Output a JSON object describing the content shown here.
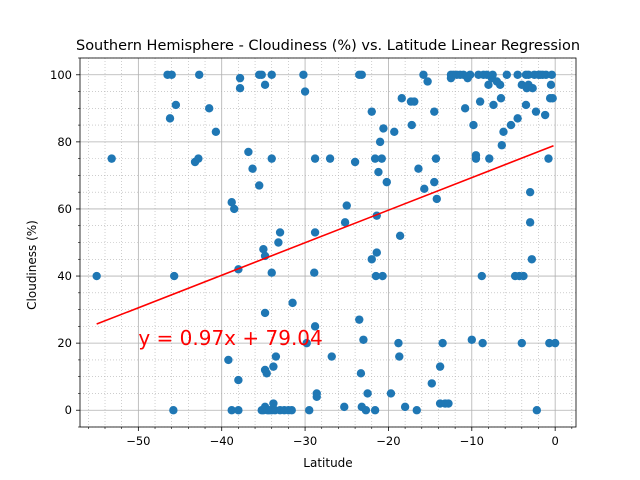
{
  "chart_data": {
    "type": "scatter",
    "title": "Southern Hemisphere - Cloudiness (%) vs. Latitude Linear Regression",
    "xlabel": "Latitude",
    "ylabel": "Cloudiness (%)",
    "xlim": [
      -57,
      2.5
    ],
    "ylim": [
      -5,
      105
    ],
    "xticks": [
      -50,
      -40,
      -30,
      -20,
      -10,
      0
    ],
    "yticks": [
      0,
      20,
      40,
      60,
      80,
      100
    ],
    "grid": true,
    "minor_grid": true,
    "marker_color": "#1f77b4",
    "regression": {
      "slope": 0.97,
      "intercept": 79.04,
      "x_range": [
        -55,
        -0.2
      ],
      "color": "#ff0000",
      "equation": "y = 0.97x + 79.04",
      "equation_position": [
        -50,
        20
      ]
    },
    "points": [
      [
        -55,
        40
      ],
      [
        -53.2,
        75
      ],
      [
        -46.5,
        100
      ],
      [
        -46,
        100
      ],
      [
        -46.2,
        87
      ],
      [
        -45.5,
        91
      ],
      [
        -45.7,
        40
      ],
      [
        -45.8,
        0
      ],
      [
        -43.2,
        74
      ],
      [
        -42.8,
        75
      ],
      [
        -42.7,
        100
      ],
      [
        -41.5,
        90
      ],
      [
        -40.7,
        83
      ],
      [
        -39.2,
        15
      ],
      [
        -38.8,
        62
      ],
      [
        -38.5,
        60
      ],
      [
        -38.8,
        0
      ],
      [
        -38,
        0
      ],
      [
        -38,
        42
      ],
      [
        -38,
        9
      ],
      [
        -37.8,
        99
      ],
      [
        -37.8,
        96
      ],
      [
        -36.8,
        77
      ],
      [
        -36.3,
        72
      ],
      [
        -35.5,
        67
      ],
      [
        -35.5,
        100
      ],
      [
        -35.2,
        100
      ],
      [
        -35,
        48
      ],
      [
        -34.8,
        46
      ],
      [
        -34.8,
        29
      ],
      [
        -34.8,
        12
      ],
      [
        -34.6,
        11
      ],
      [
        -34.8,
        97
      ],
      [
        -34,
        100
      ],
      [
        -34,
        75
      ],
      [
        -34,
        41
      ],
      [
        -35.2,
        0
      ],
      [
        -35,
        0
      ],
      [
        -34.8,
        1
      ],
      [
        -34.5,
        0
      ],
      [
        -34.3,
        0
      ],
      [
        -34,
        0
      ],
      [
        -33.8,
        2
      ],
      [
        -33.6,
        0
      ],
      [
        -33.8,
        13
      ],
      [
        -33.5,
        16
      ],
      [
        -33.2,
        50
      ],
      [
        -33,
        53
      ],
      [
        -33,
        0
      ],
      [
        -32.5,
        0
      ],
      [
        -32,
        0
      ],
      [
        -31.6,
        0
      ],
      [
        -31.5,
        32
      ],
      [
        -30.2,
        100
      ],
      [
        -30,
        95
      ],
      [
        -29.8,
        20
      ],
      [
        -29.5,
        0
      ],
      [
        -28.8,
        75
      ],
      [
        -28.8,
        53
      ],
      [
        -28.9,
        41
      ],
      [
        -28.8,
        25
      ],
      [
        -28.6,
        5
      ],
      [
        -28.6,
        4
      ],
      [
        -27,
        75
      ],
      [
        -26.8,
        16
      ],
      [
        -25.3,
        1
      ],
      [
        -25.2,
        56
      ],
      [
        -25,
        61
      ],
      [
        -24,
        74
      ],
      [
        -23.5,
        27
      ],
      [
        -23.5,
        100
      ],
      [
        -23.2,
        100
      ],
      [
        -23.3,
        11
      ],
      [
        -23,
        21
      ],
      [
        -23.2,
        1
      ],
      [
        -22.7,
        0
      ],
      [
        -22.5,
        5
      ],
      [
        -22,
        89
      ],
      [
        -22,
        45
      ],
      [
        -21.6,
        0
      ],
      [
        -21.6,
        75
      ],
      [
        -21.5,
        40
      ],
      [
        -21.4,
        47
      ],
      [
        -21.4,
        58
      ],
      [
        -21.2,
        71
      ],
      [
        -21,
        80
      ],
      [
        -20.8,
        75
      ],
      [
        -20.7,
        40
      ],
      [
        -20.6,
        84
      ],
      [
        -20.2,
        68
      ],
      [
        -19.7,
        5
      ],
      [
        -19.3,
        83
      ],
      [
        -18.8,
        20
      ],
      [
        -18.7,
        16
      ],
      [
        -18.6,
        52
      ],
      [
        -18.4,
        93
      ],
      [
        -18,
        1
      ],
      [
        -17.3,
        92
      ],
      [
        -17.2,
        85
      ],
      [
        -16.9,
        92
      ],
      [
        -16.6,
        0
      ],
      [
        -16.4,
        72
      ],
      [
        -15.8,
        100
      ],
      [
        -15.7,
        66
      ],
      [
        -15.3,
        98
      ],
      [
        -14.8,
        8
      ],
      [
        -14.5,
        68
      ],
      [
        -14.5,
        89
      ],
      [
        -14.3,
        75
      ],
      [
        -14.2,
        63
      ],
      [
        -13.8,
        13
      ],
      [
        -13.8,
        2
      ],
      [
        -13.5,
        20
      ],
      [
        -13.2,
        2
      ],
      [
        -12.8,
        2
      ],
      [
        -12.5,
        100
      ],
      [
        -12.2,
        100
      ],
      [
        -12.5,
        99
      ],
      [
        -11.8,
        100
      ],
      [
        -11.4,
        100
      ],
      [
        -11,
        100
      ],
      [
        -10.8,
        90
      ],
      [
        -10.5,
        99
      ],
      [
        -10.2,
        100
      ],
      [
        -10,
        21
      ],
      [
        -9.8,
        85
      ],
      [
        -9.5,
        76
      ],
      [
        -9.5,
        75
      ],
      [
        -9.2,
        100
      ],
      [
        -9,
        92
      ],
      [
        -8.8,
        40
      ],
      [
        -8.7,
        20
      ],
      [
        -8.6,
        100
      ],
      [
        -8.2,
        100
      ],
      [
        -8,
        97
      ],
      [
        -7.9,
        75
      ],
      [
        -7.6,
        99
      ],
      [
        -7.5,
        100
      ],
      [
        -7.4,
        91
      ],
      [
        -7,
        98
      ],
      [
        -6.6,
        97
      ],
      [
        -6.5,
        93
      ],
      [
        -6.4,
        79
      ],
      [
        -6.2,
        83
      ],
      [
        -5.8,
        100
      ],
      [
        -5.3,
        85
      ],
      [
        -4.8,
        40
      ],
      [
        -4.5,
        87
      ],
      [
        -4.5,
        100
      ],
      [
        -4.3,
        40
      ],
      [
        -4,
        97
      ],
      [
        -4,
        20
      ],
      [
        -3.8,
        40
      ],
      [
        -3.5,
        100
      ],
      [
        -3.5,
        91
      ],
      [
        -3.4,
        96
      ],
      [
        -3.2,
        97
      ],
      [
        -3.2,
        100
      ],
      [
        -3,
        65
      ],
      [
        -3,
        56
      ],
      [
        -2.8,
        45
      ],
      [
        -2.7,
        96
      ],
      [
        -2.5,
        100
      ],
      [
        -2.2,
        0
      ],
      [
        -2.3,
        89
      ],
      [
        -2,
        100
      ],
      [
        -1.8,
        100
      ],
      [
        -1.5,
        100
      ],
      [
        -1.2,
        88
      ],
      [
        -1.1,
        100
      ],
      [
        -0.8,
        75
      ],
      [
        -0.7,
        20
      ],
      [
        -0.6,
        93
      ],
      [
        -0.5,
        97
      ],
      [
        -0.4,
        100
      ],
      [
        -0.3,
        93
      ],
      [
        0,
        20
      ]
    ]
  }
}
